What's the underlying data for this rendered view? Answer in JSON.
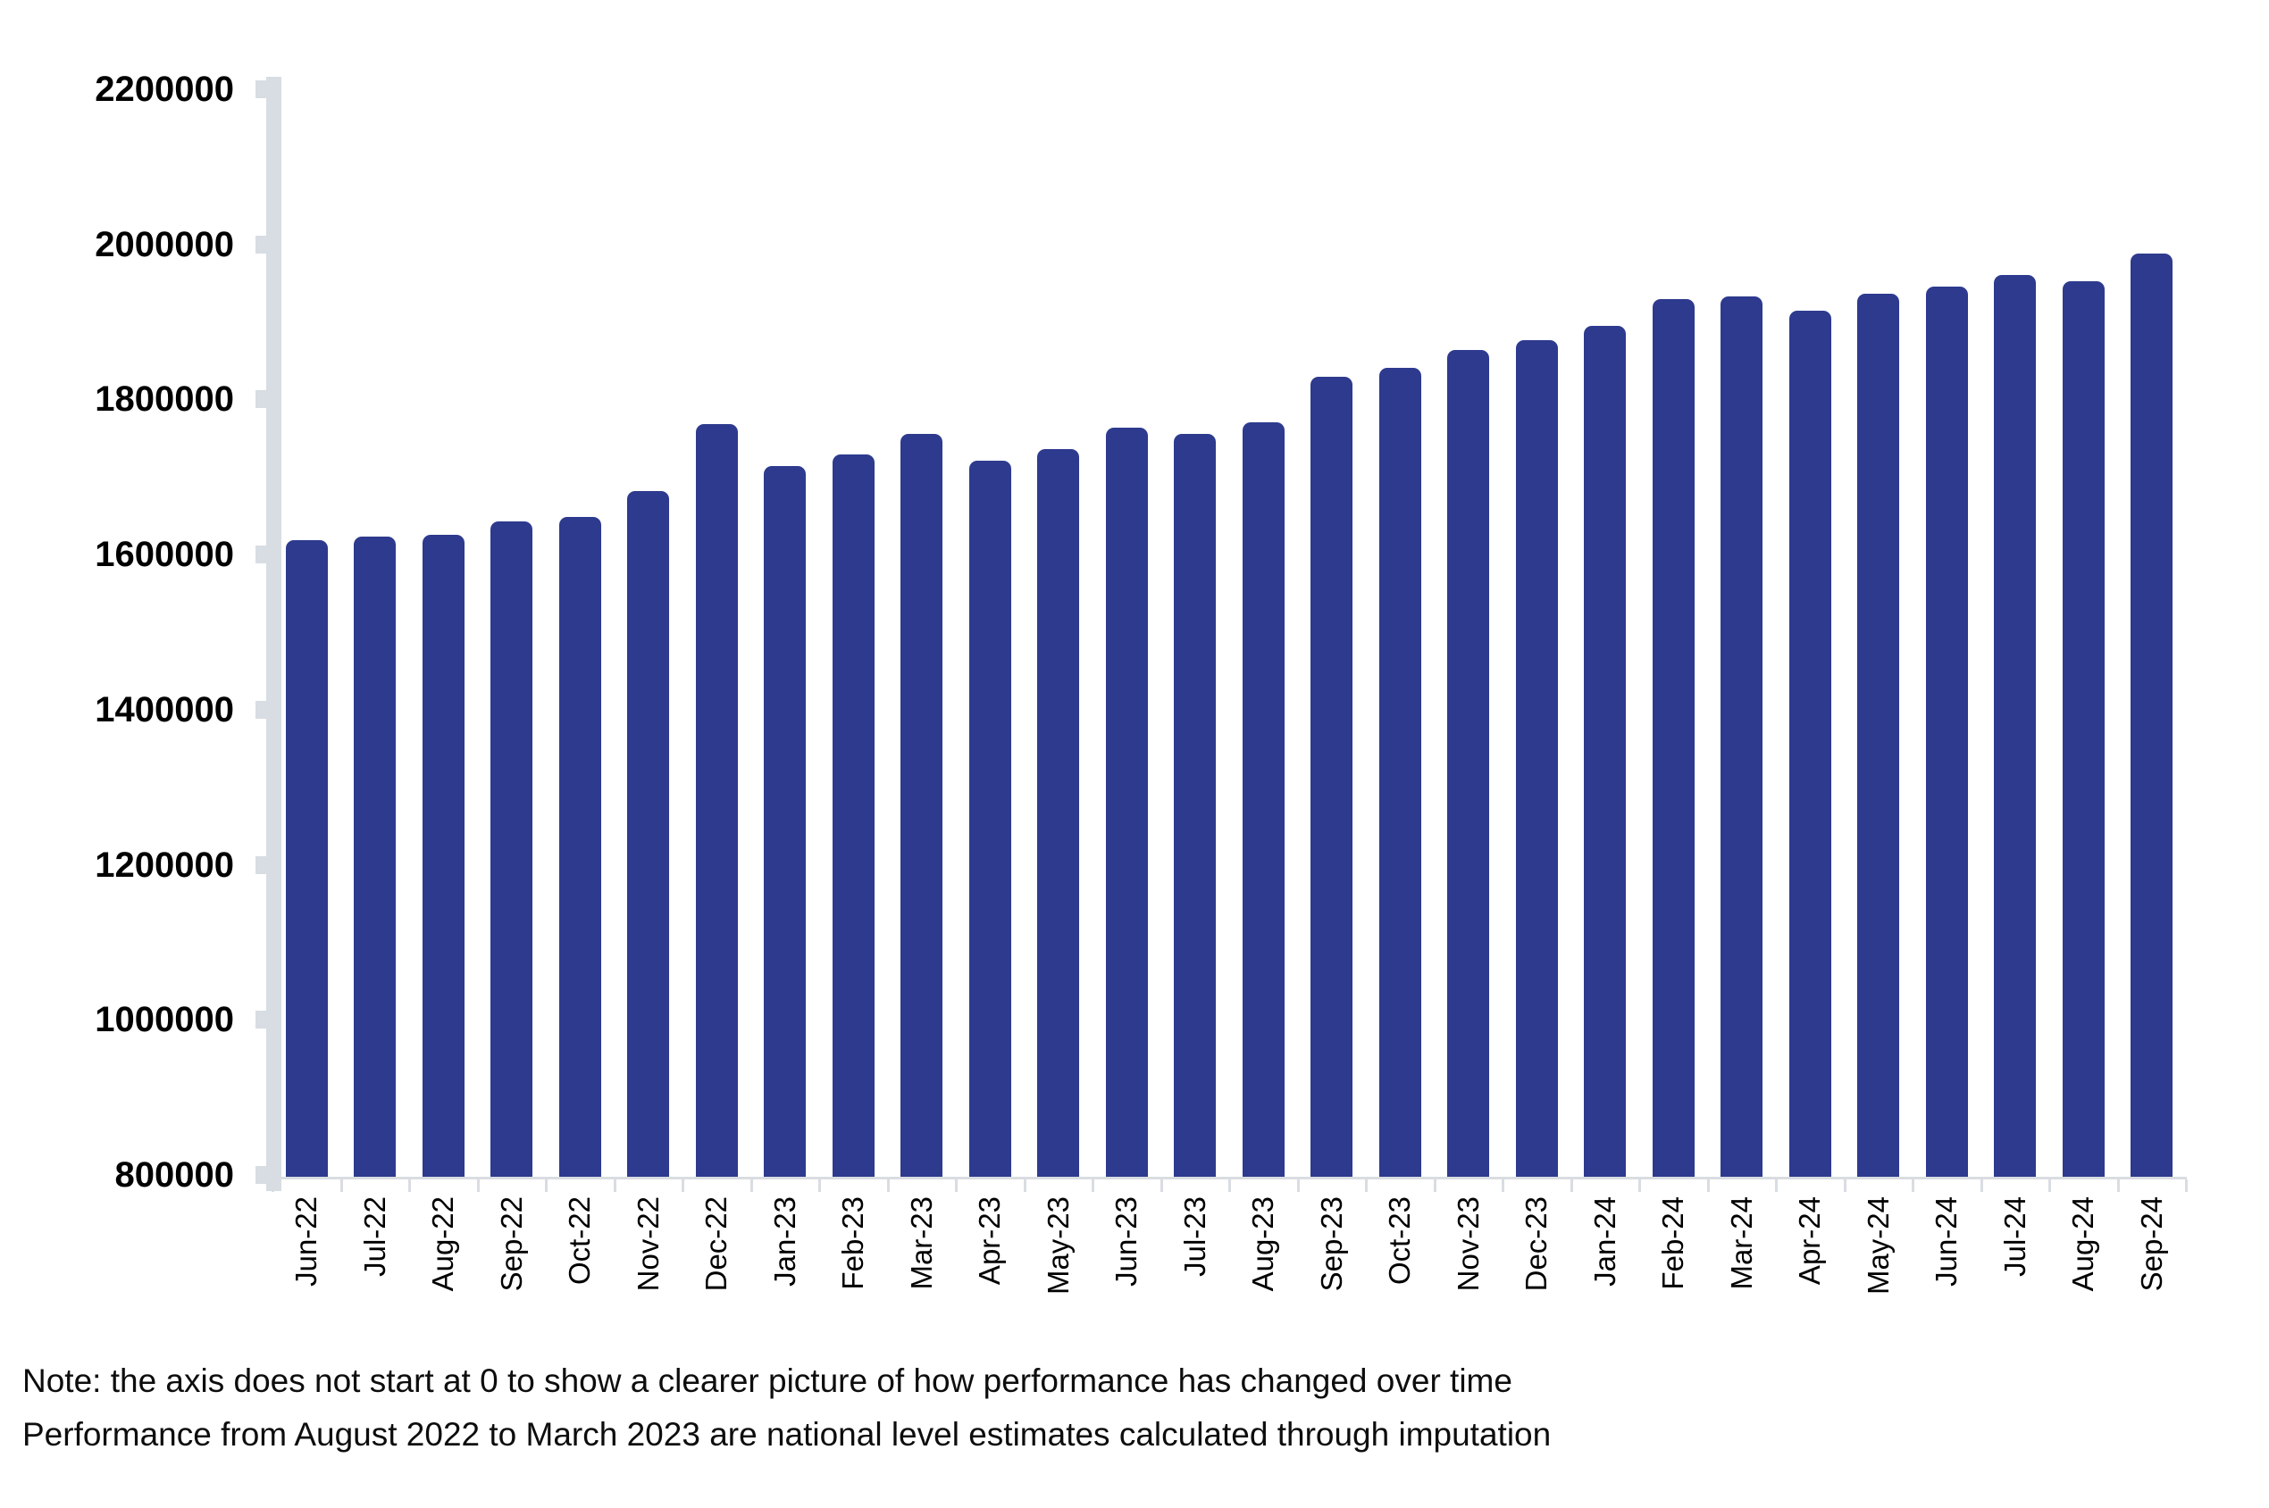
{
  "chart_data": {
    "type": "bar",
    "title": "",
    "xlabel": "",
    "ylabel": "",
    "categories": [
      "Jun-22",
      "Jul-22",
      "Aug-22",
      "Sep-22",
      "Oct-22",
      "Nov-22",
      "Dec-22",
      "Jan-23",
      "Feb-23",
      "Mar-23",
      "Apr-23",
      "May-23",
      "Jun-23",
      "Jul-23",
      "Aug-23",
      "Sep-23",
      "Oct-23",
      "Nov-23",
      "Dec-23",
      "Jan-24",
      "Feb-24",
      "Mar-24",
      "Apr-24",
      "May-24",
      "Jun-24",
      "Jul-24",
      "Aug-24",
      "Sep-24"
    ],
    "values": [
      1619000,
      1623000,
      1626000,
      1643000,
      1648000,
      1682000,
      1768000,
      1714000,
      1729000,
      1756000,
      1721000,
      1736000,
      1764000,
      1756000,
      1771000,
      1829000,
      1841000,
      1864000,
      1877000,
      1895000,
      1929000,
      1933000,
      1915000,
      1936000,
      1946000,
      1961000,
      1953000,
      1988000
    ],
    "y_axis": {
      "min": 800000,
      "max": 2200000,
      "step": 200000,
      "tick_labels": [
        "800000",
        "1000000",
        "1200000",
        "1400000",
        "1600000",
        "1800000",
        "2000000",
        "2200000"
      ]
    },
    "grid": "off",
    "legend": "none",
    "colors": {
      "bar": "#2d3a8e",
      "axis": "#d8dde3",
      "x_axis_line": "#d9dde2",
      "text": "#000000"
    }
  },
  "notes": {
    "line1": "Note: the axis does not start at 0 to show a clearer picture of how performance has changed over time",
    "line2": "Performance from August 2022 to March 2023 are national level estimates calculated through imputation"
  }
}
